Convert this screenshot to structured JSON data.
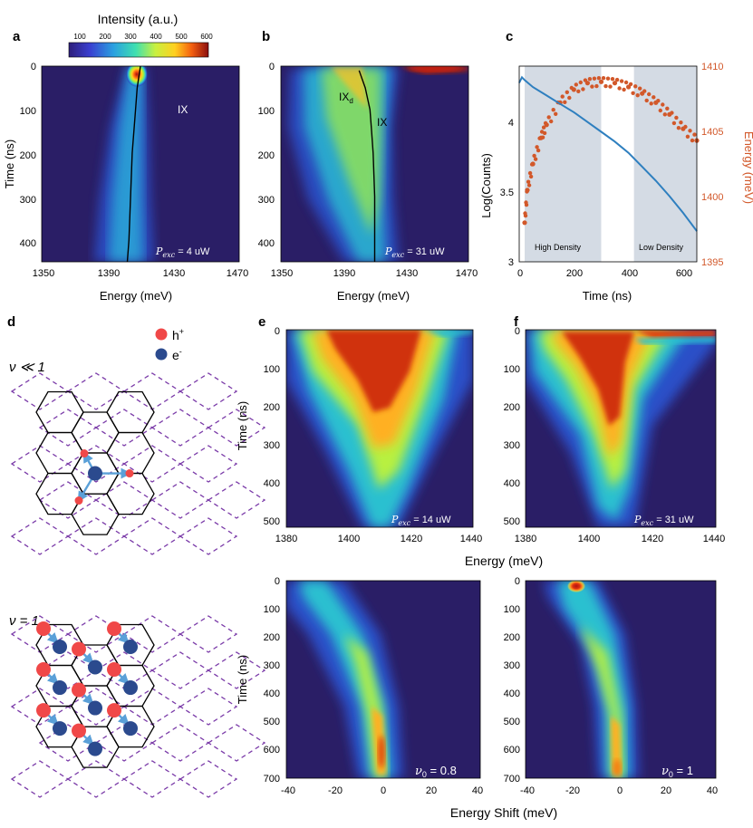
{
  "colorbar": {
    "title": "Intensity (a.u.)",
    "ticks": [
      "100",
      "200",
      "300",
      "400",
      "500",
      "600"
    ]
  },
  "panels": {
    "a": {
      "letter": "a",
      "ylabel": "Time (ns)",
      "xlabel": "Energy (meV)",
      "xticks": [
        "1350",
        "1390",
        "1430",
        "1470"
      ],
      "yticks": [
        "0",
        "100",
        "200",
        "300",
        "400"
      ],
      "annotation": "IX",
      "pexc": "4 uW"
    },
    "b": {
      "letter": "b",
      "xlabel": "Energy (meV)",
      "xticks": [
        "1350",
        "1390",
        "1430",
        "1470"
      ],
      "yticks": [
        "0",
        "100",
        "200",
        "300",
        "400"
      ],
      "ann_ixd": "IX",
      "ann_ixd_sub": "d",
      "ann_ix": "IX",
      "pexc": "31 uW"
    },
    "c": {
      "letter": "c",
      "xlabel": "Time (ns)",
      "ylabel_left": "Log(Counts)",
      "ylabel_right": "Energy (meV)",
      "xticks": [
        "0",
        "200",
        "400",
        "600"
      ],
      "yticks_left": [
        "3",
        "3.5",
        "4"
      ],
      "yticks_right": [
        "1395",
        "1400",
        "1405",
        "1410"
      ],
      "shade_high": "High Density",
      "shade_low": "Low Density"
    },
    "d": {
      "letter": "d",
      "legend_h": "h",
      "legend_h_sup": "+",
      "legend_e": "e",
      "legend_e_sup": "-",
      "nu_top": "ν ≪ 1",
      "nu_bottom": "ν = 1"
    },
    "e": {
      "letter": "e",
      "ylabel": "Time (ns)",
      "xticks": [
        "1380",
        "1400",
        "1420",
        "1440"
      ],
      "yticks": [
        "0",
        "100",
        "200",
        "300",
        "400",
        "500"
      ],
      "pexc": "14 uW"
    },
    "f": {
      "letter": "f",
      "xticks": [
        "1380",
        "1400",
        "1420",
        "1440"
      ],
      "yticks": [
        "0",
        "100",
        "200",
        "300",
        "400",
        "500"
      ],
      "pexc": "31 uW"
    },
    "ef_xlabel": "Energy (meV)",
    "g": {
      "ylabel": "Time (ns)",
      "xticks": [
        "-40",
        "-20",
        "0",
        "20",
        "40"
      ],
      "yticks": [
        "0",
        "100",
        "200",
        "300",
        "400",
        "500",
        "600",
        "700"
      ],
      "nu0": "0.8"
    },
    "h": {
      "xticks": [
        "-40",
        "-20",
        "0",
        "20",
        "40"
      ],
      "yticks": [
        "0",
        "100",
        "200",
        "300",
        "400",
        "500",
        "600",
        "700"
      ],
      "nu0": "1"
    },
    "gh_xlabel": "Energy Shift (meV)"
  },
  "chart_data": [
    {
      "type": "heatmap",
      "panel": "a",
      "xlabel": "Energy (meV)",
      "ylabel": "Time (ns)",
      "xlim": [
        1350,
        1470
      ],
      "ylim": [
        0,
        450
      ],
      "colorbar_range": [
        100,
        600
      ],
      "peak_trace": {
        "t": [
          0,
          50,
          100,
          200,
          300,
          400,
          450
        ],
        "E": [
          1410,
          1408,
          1407,
          1405,
          1404,
          1403,
          1402
        ]
      }
    },
    {
      "type": "heatmap",
      "panel": "b",
      "xlabel": "Energy (meV)",
      "ylabel": "Time (ns)",
      "xlim": [
        1350,
        1470
      ],
      "ylim": [
        0,
        450
      ],
      "peak_trace": {
        "t": [
          10,
          50,
          100,
          150,
          200,
          300,
          400,
          450
        ],
        "E": [
          1400,
          1404,
          1407,
          1408,
          1409,
          1410,
          1410,
          1410
        ]
      }
    },
    {
      "type": "line",
      "panel": "c",
      "xlabel": "Time (ns)",
      "xlim": [
        0,
        650
      ],
      "ylim_left": [
        3,
        4.4
      ],
      "ylim_right": [
        1395,
        1410
      ],
      "shaded_regions": [
        {
          "label": "High Density",
          "x": [
            20,
            300
          ]
        },
        {
          "label": "Low Density",
          "x": [
            420,
            650
          ]
        }
      ],
      "series": [
        {
          "name": "Log(Counts)",
          "axis": "left",
          "color": "#2e7fbf",
          "x": [
            0,
            10,
            20,
            50,
            100,
            150,
            200,
            250,
            300,
            350,
            400,
            450,
            500,
            550,
            600,
            650
          ],
          "y": [
            4.28,
            4.32,
            4.3,
            4.25,
            4.19,
            4.13,
            4.07,
            4.0,
            3.93,
            3.86,
            3.78,
            3.68,
            3.58,
            3.47,
            3.35,
            3.22
          ]
        },
        {
          "name": "Energy (meV)",
          "axis": "right",
          "color": "#d2582a",
          "x": [
            20,
            30,
            50,
            80,
            100,
            150,
            200,
            250,
            300,
            350,
            400,
            450,
            500,
            550,
            600,
            650
          ],
          "y": [
            1398,
            1400.5,
            1402.5,
            1404.5,
            1405.5,
            1407.2,
            1408.2,
            1408.7,
            1408.8,
            1408.7,
            1408.4,
            1407.9,
            1407.2,
            1406.3,
            1405.2,
            1404.3
          ]
        }
      ]
    },
    {
      "type": "heatmap",
      "panel": "e",
      "ylabel": "Time (ns)",
      "xlim": [
        1380,
        1440
      ],
      "ylim": [
        0,
        520
      ]
    },
    {
      "type": "heatmap",
      "panel": "f",
      "xlim": [
        1380,
        1440
      ],
      "ylim": [
        0,
        520
      ]
    },
    {
      "type": "heatmap",
      "panel": "g",
      "xlabel": "Energy Shift (meV)",
      "ylabel": "Time (ns)",
      "xlim": [
        -40,
        40
      ],
      "ylim": [
        0,
        700
      ],
      "nu0": 0.8
    },
    {
      "type": "heatmap",
      "panel": "h",
      "xlabel": "Energy Shift (meV)",
      "xlim": [
        -40,
        40
      ],
      "ylim": [
        0,
        700
      ],
      "nu0": 1
    }
  ]
}
